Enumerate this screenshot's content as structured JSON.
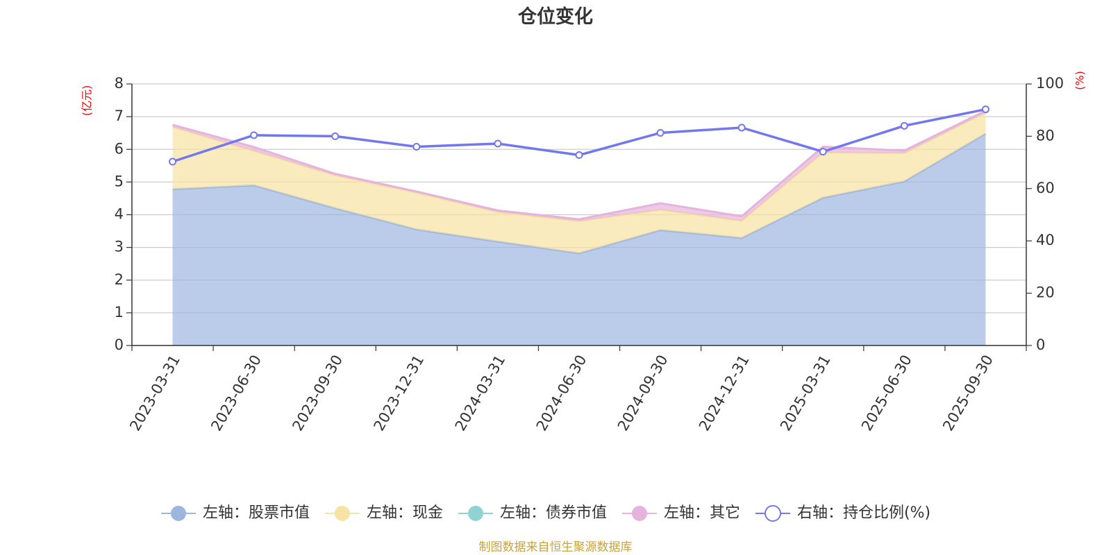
{
  "chart_data": {
    "type": "area",
    "title": "仓位变化",
    "left_axis_unit": "(亿元)",
    "right_axis_unit": "(%)",
    "left_ylim": [
      0,
      8
    ],
    "left_yticks": [
      "0",
      "1",
      "2",
      "3",
      "4",
      "5",
      "6",
      "7",
      "8"
    ],
    "right_ylim": [
      0,
      100
    ],
    "right_yticks": [
      "0",
      "20",
      "40",
      "60",
      "80",
      "100"
    ],
    "categories": [
      "2023-03-31",
      "2023-06-30",
      "2023-09-30",
      "2023-12-31",
      "2024-03-31",
      "2024-06-30",
      "2024-09-30",
      "2024-12-31",
      "2025-03-31",
      "2025-06-30",
      "2025-09-30"
    ],
    "series": [
      {
        "name": "左轴：股票市值",
        "axis": "left",
        "kind": "stacked-area",
        "color": "#9db6e0",
        "values": [
          4.78,
          4.9,
          4.2,
          3.55,
          3.18,
          2.82,
          3.53,
          3.29,
          4.52,
          5.02,
          6.48
        ]
      },
      {
        "name": "左轴：现金",
        "axis": "left",
        "kind": "stacked-area",
        "color": "#f7e3a3",
        "values": [
          1.9,
          1.05,
          1.0,
          1.12,
          0.9,
          0.98,
          0.62,
          0.52,
          1.38,
          0.86,
          0.64
        ]
      },
      {
        "name": "左轴：债券市值",
        "axis": "left",
        "kind": "stacked-area",
        "color": "#8fd3d3",
        "values": [
          0,
          0,
          0,
          0,
          0,
          0,
          0,
          0,
          0,
          0,
          0
        ]
      },
      {
        "name": "左轴：其它",
        "axis": "left",
        "kind": "stacked-area",
        "color": "#e6b3dc",
        "values": [
          0.07,
          0.12,
          0.05,
          0.04,
          0.05,
          0.06,
          0.2,
          0.14,
          0.18,
          0.08,
          0.06
        ]
      },
      {
        "name": "右轴：持仓比例(%)",
        "axis": "right",
        "kind": "line",
        "color": "#7377ee",
        "values": [
          70.3,
          80.4,
          80.0,
          76.0,
          77.2,
          72.8,
          81.3,
          83.3,
          74.1,
          84.0,
          90.3
        ]
      }
    ],
    "grid": true,
    "legend_position": "bottom"
  },
  "footer": {
    "source": "制图数据来自恒生聚源数据库"
  }
}
